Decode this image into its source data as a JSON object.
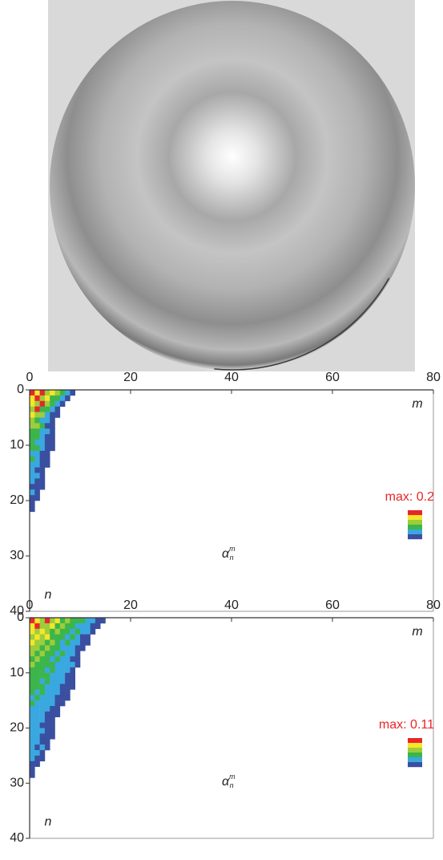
{
  "chart_data": [
    {
      "type": "heatmap",
      "xlim": [
        0,
        80
      ],
      "xticks": [
        0,
        20,
        40,
        60,
        80
      ],
      "ylim": [
        0,
        40
      ],
      "yticks": [
        0,
        10,
        20,
        30,
        40
      ],
      "x_label": "m",
      "y_label": "n",
      "symbol": {
        "base": "α",
        "sup": "m",
        "sub": "n"
      },
      "max": {
        "value": 0.2,
        "label": "max: 0.2"
      },
      "colors": [
        "#e8262a",
        "#f5e62a",
        "#9ccd3c",
        "#3cb54a",
        "#3aa8e0",
        "#3a4fa0"
      ],
      "z": [
        [
          0.17,
          0.15,
          0.19,
          0.13,
          0.16,
          0.12,
          0.09,
          0.05,
          0.02
        ],
        [
          0.14,
          0.18,
          0.12,
          0.15,
          0.1,
          0.07,
          0.04,
          0.02
        ],
        [
          0.16,
          0.13,
          0.17,
          0.11,
          0.08,
          0.05,
          0.02
        ],
        [
          0.12,
          0.19,
          0.1,
          0.07,
          0.04,
          0.02
        ],
        [
          0.15,
          0.11,
          0.13,
          0.06,
          0.03,
          0.02
        ],
        [
          0.13,
          0.09,
          0.06,
          0.04,
          0.02
        ],
        [
          0.11,
          0.12,
          0.07,
          0.03,
          0.02
        ],
        [
          0.09,
          0.08,
          0.05,
          0.04,
          0.02
        ],
        [
          0.1,
          0.07,
          0.06,
          0.03,
          0.02
        ],
        [
          0.08,
          0.06,
          0.04,
          0.02,
          0.02
        ],
        [
          0.07,
          0.07,
          0.05,
          0.03,
          0.02
        ],
        [
          0.06,
          0.05,
          0.03,
          0.02
        ],
        [
          0.07,
          0.04,
          0.03,
          0.02
        ],
        [
          0.05,
          0.06,
          0.02,
          0.02
        ],
        [
          0.05,
          0.03,
          0.02
        ],
        [
          0.04,
          0.04,
          0.02
        ],
        [
          0.05,
          0.03,
          0.02
        ],
        [
          0.03,
          0.02,
          0.02
        ],
        [
          0.04,
          0.02
        ],
        [
          0.03,
          0.02
        ],
        [
          0.02
        ],
        [
          0.02
        ]
      ]
    },
    {
      "type": "heatmap",
      "xlim": [
        0,
        80
      ],
      "xticks": [
        0,
        20,
        40,
        60,
        80
      ],
      "ylim": [
        0,
        40
      ],
      "yticks": [
        0,
        10,
        20,
        30,
        40
      ],
      "x_label": "m",
      "y_label": "n",
      "symbol": {
        "base": "α",
        "sup": "m",
        "sub": "n"
      },
      "max": {
        "value": 0.11,
        "label": "max: 0.11"
      },
      "colors": [
        "#e8262a",
        "#f5e62a",
        "#9ccd3c",
        "#3cb54a",
        "#3aa8e0",
        "#3a4fa0"
      ],
      "z": [
        [
          0.1,
          0.09,
          0.07,
          0.1,
          0.06,
          0.08,
          0.05,
          0.06,
          0.05,
          0.04,
          0.04,
          0.03,
          0.02,
          0.01,
          0.01
        ],
        [
          0.08,
          0.1,
          0.06,
          0.07,
          0.08,
          0.05,
          0.06,
          0.04,
          0.05,
          0.03,
          0.03,
          0.02,
          0.01,
          0.01
        ],
        [
          0.09,
          0.07,
          0.08,
          0.06,
          0.05,
          0.07,
          0.04,
          0.05,
          0.03,
          0.04,
          0.02,
          0.02,
          0.01
        ],
        [
          0.07,
          0.09,
          0.06,
          0.08,
          0.05,
          0.04,
          0.05,
          0.03,
          0.04,
          0.02,
          0.01,
          0.01
        ],
        [
          0.08,
          0.06,
          0.07,
          0.05,
          0.06,
          0.04,
          0.03,
          0.04,
          0.02,
          0.03,
          0.01,
          0.01
        ],
        [
          0.06,
          0.07,
          0.05,
          0.06,
          0.04,
          0.05,
          0.03,
          0.03,
          0.02,
          0.01,
          0.01
        ],
        [
          0.07,
          0.05,
          0.06,
          0.04,
          0.05,
          0.03,
          0.04,
          0.02,
          0.02,
          0.01
        ],
        [
          0.05,
          0.06,
          0.04,
          0.05,
          0.03,
          0.04,
          0.03,
          0.02,
          0.01,
          0.01
        ],
        [
          0.06,
          0.05,
          0.05,
          0.04,
          0.04,
          0.03,
          0.02,
          0.03,
          0.02,
          0.01
        ],
        [
          0.05,
          0.04,
          0.05,
          0.03,
          0.04,
          0.03,
          0.02,
          0.02,
          0.01
        ],
        [
          0.04,
          0.05,
          0.04,
          0.04,
          0.03,
          0.03,
          0.02,
          0.01,
          0.01
        ],
        [
          0.05,
          0.04,
          0.03,
          0.04,
          0.03,
          0.02,
          0.02,
          0.01,
          0.01
        ],
        [
          0.04,
          0.04,
          0.04,
          0.03,
          0.03,
          0.02,
          0.01,
          0.01,
          0.01
        ],
        [
          0.04,
          0.03,
          0.04,
          0.03,
          0.02,
          0.02,
          0.01,
          0.01
        ],
        [
          0.03,
          0.04,
          0.03,
          0.03,
          0.02,
          0.01,
          0.01,
          0.01
        ],
        [
          0.04,
          0.03,
          0.03,
          0.02,
          0.02,
          0.01,
          0.01
        ],
        [
          0.03,
          0.03,
          0.02,
          0.02,
          0.01,
          0.01
        ],
        [
          0.03,
          0.03,
          0.02,
          0.01,
          0.01,
          0.01
        ],
        [
          0.03,
          0.02,
          0.02,
          0.01,
          0.01
        ],
        [
          0.02,
          0.03,
          0.01,
          0.01,
          0.01
        ],
        [
          0.03,
          0.02,
          0.02,
          0.01,
          0.01
        ],
        [
          0.02,
          0.02,
          0.01,
          0.01,
          0.01
        ],
        [
          0.02,
          0.02,
          0.01,
          0.01
        ],
        [
          0.02,
          0.01,
          0.02,
          0.01
        ],
        [
          0.02,
          0.02,
          0.01
        ],
        [
          0.02,
          0.01,
          0.01
        ],
        [
          0.01,
          0.01
        ],
        [
          0.01
        ],
        [
          0.01
        ]
      ]
    }
  ]
}
